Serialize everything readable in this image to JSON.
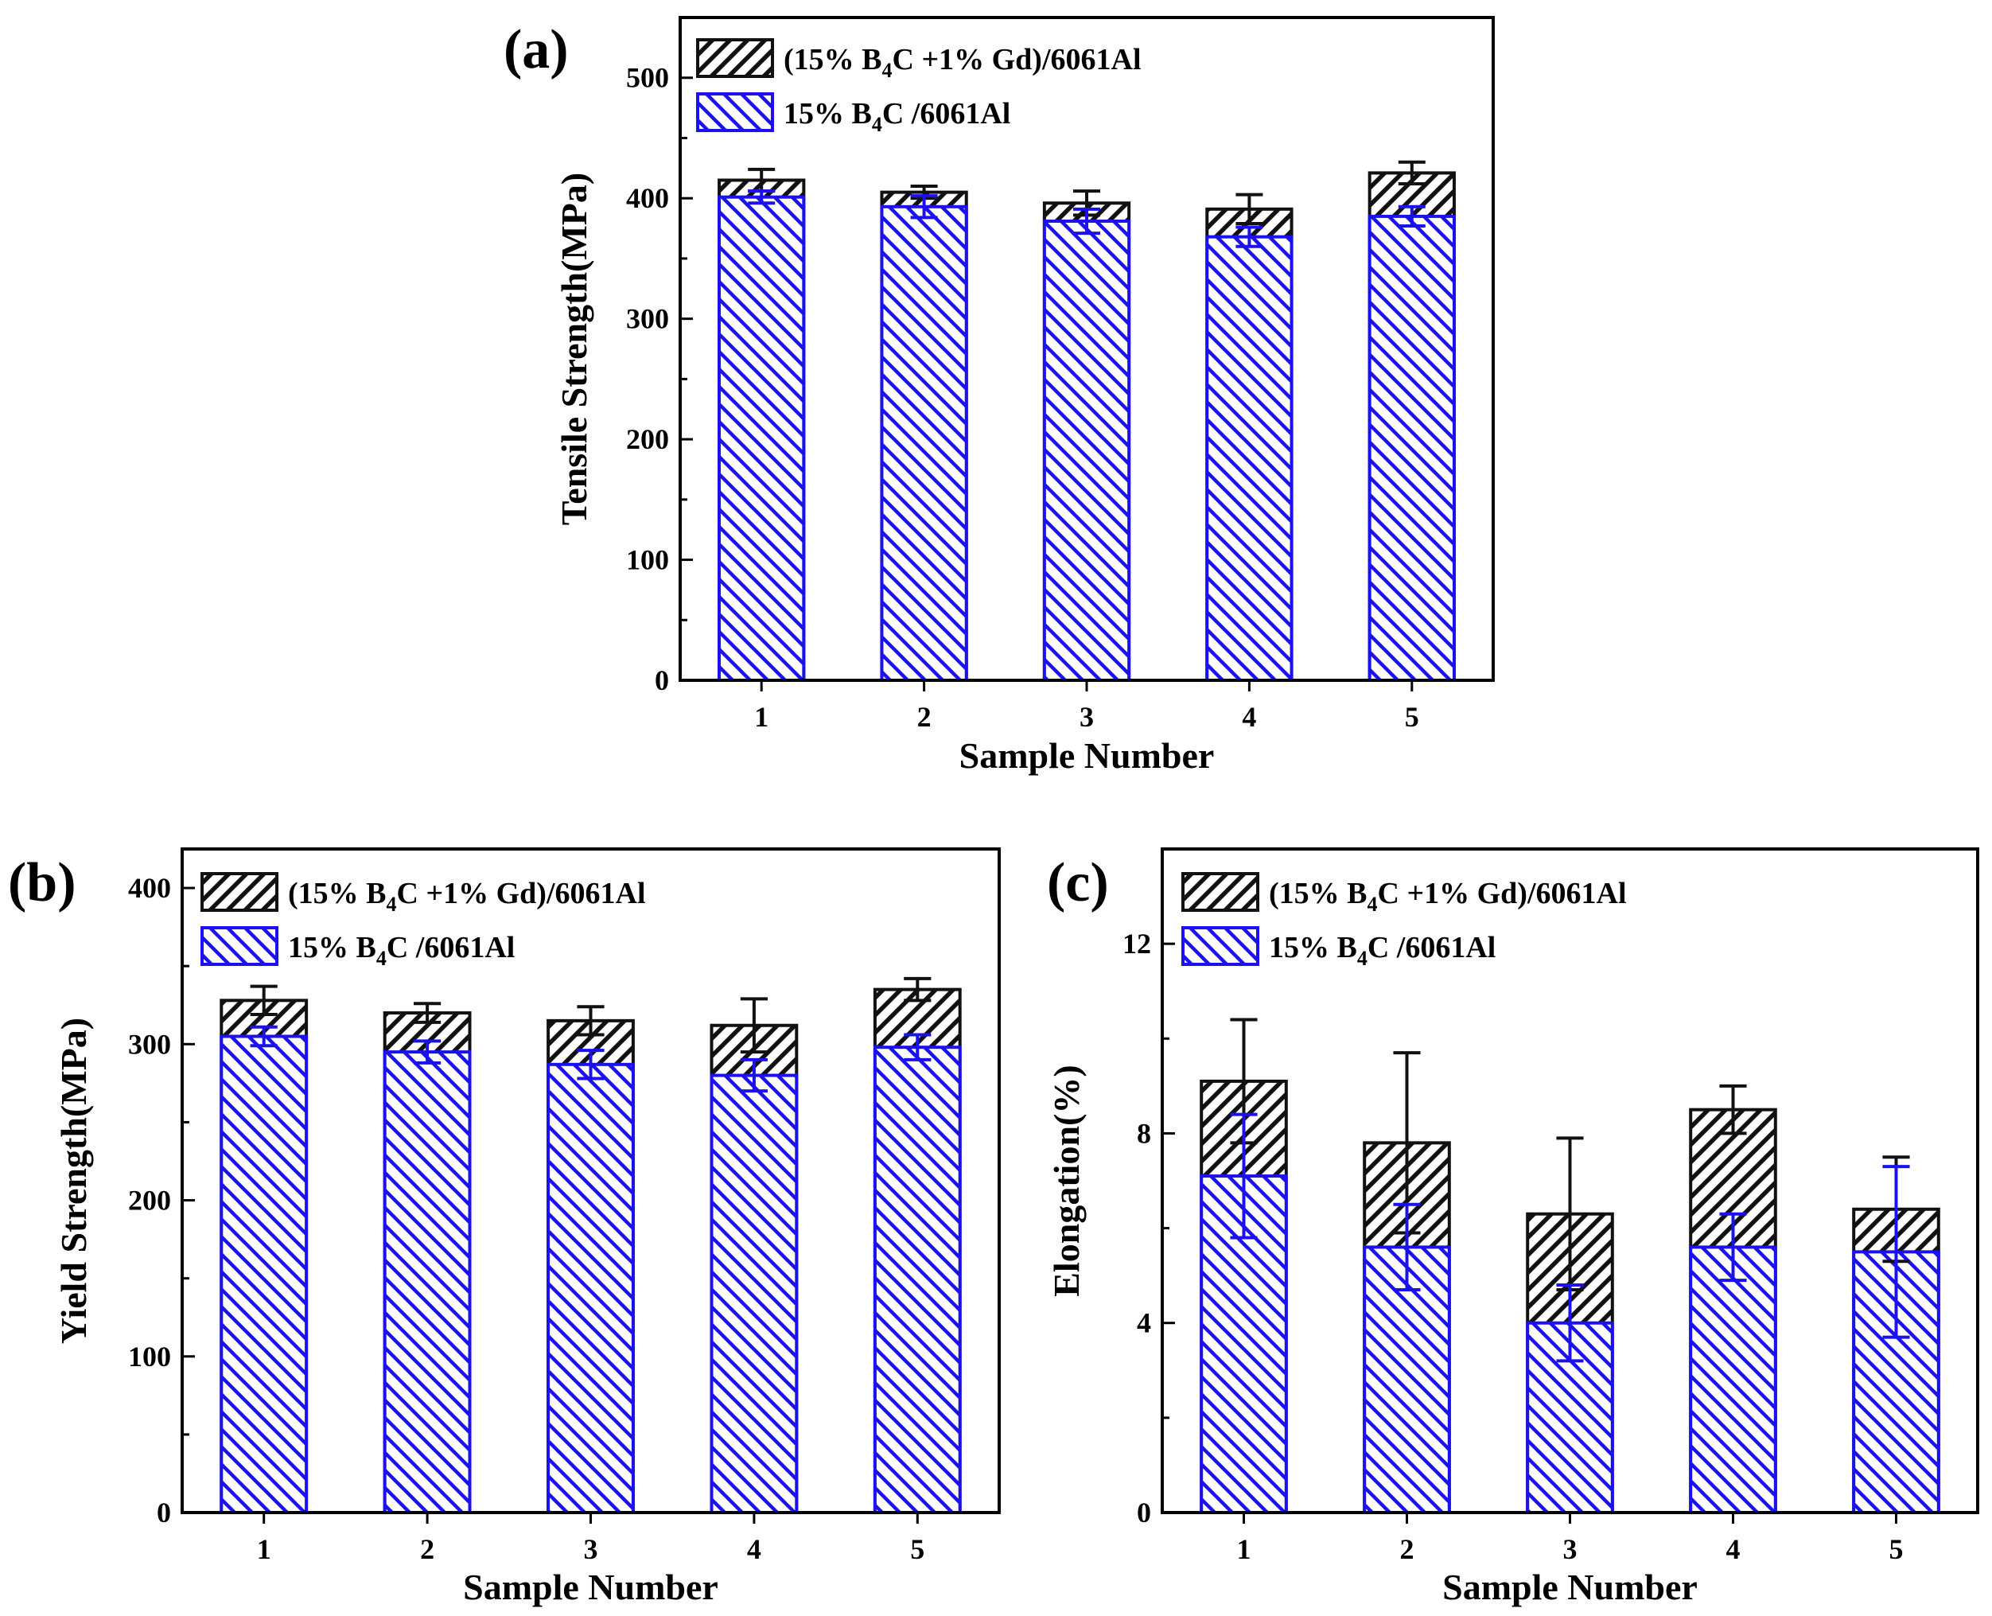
{
  "colors": {
    "black_series": "#111111",
    "blue_series": "#1a10f0"
  },
  "legend": {
    "gd": {
      "pre": "(15% B",
      "sub": "4",
      "post": "C +1% Gd)/6061Al"
    },
    "base": {
      "pre": "15% B",
      "sub": "4",
      "post": "C /6061Al"
    }
  },
  "chart_data": [
    {
      "type": "bar",
      "panel_label": "(a)",
      "title": "",
      "xlabel": "Sample Number",
      "ylabel": "Tensile Strength(MPa)",
      "categories": [
        "1",
        "2",
        "3",
        "4",
        "5"
      ],
      "ylim": [
        0,
        550
      ],
      "yticks": [
        0,
        100,
        200,
        300,
        400,
        500
      ],
      "legend_position": "top-left",
      "series": [
        {
          "name": "(15% B4C +1% Gd)/6061Al",
          "values": [
            415,
            405,
            396,
            391,
            421
          ],
          "errors": [
            9,
            5,
            10,
            12,
            9
          ]
        },
        {
          "name": "15% B4C /6061Al",
          "values": [
            401,
            393,
            381,
            368,
            385
          ],
          "errors": [
            5,
            9,
            10,
            8,
            8
          ]
        }
      ]
    },
    {
      "type": "bar",
      "panel_label": "(b)",
      "title": "",
      "xlabel": "Sample Number",
      "ylabel": "Yield Strength(MPa)",
      "categories": [
        "1",
        "2",
        "3",
        "4",
        "5"
      ],
      "ylim": [
        0,
        425
      ],
      "yticks": [
        0,
        100,
        200,
        300,
        400
      ],
      "legend_position": "top-left",
      "series": [
        {
          "name": "(15% B4C +1% Gd)/6061Al",
          "values": [
            328,
            320,
            315,
            312,
            335
          ],
          "errors": [
            9,
            6,
            9,
            17,
            7
          ]
        },
        {
          "name": "15% B4C /6061Al",
          "values": [
            305,
            295,
            287,
            280,
            298
          ],
          "errors": [
            6,
            7,
            9,
            10,
            8
          ]
        }
      ]
    },
    {
      "type": "bar",
      "panel_label": "(c)",
      "title": "",
      "xlabel": "Sample Number",
      "ylabel": "Elongation(%)",
      "categories": [
        "1",
        "2",
        "3",
        "4",
        "5"
      ],
      "ylim": [
        0,
        14
      ],
      "yticks": [
        0,
        4,
        8,
        12
      ],
      "legend_position": "top-left",
      "series": [
        {
          "name": "(15% B4C +1% Gd)/6061Al",
          "values": [
            9.1,
            7.8,
            6.3,
            8.5,
            6.4
          ],
          "errors": [
            1.3,
            1.9,
            1.6,
            0.5,
            1.1
          ]
        },
        {
          "name": "15% B4C /6061Al",
          "values": [
            7.1,
            5.6,
            4.0,
            5.6,
            5.5
          ],
          "errors": [
            1.3,
            0.9,
            0.8,
            0.7,
            1.8
          ]
        }
      ]
    }
  ]
}
